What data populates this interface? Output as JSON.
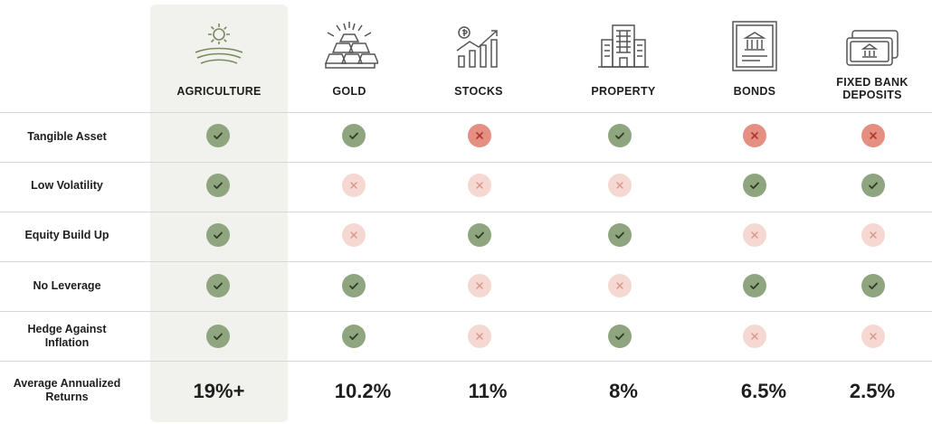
{
  "columns": [
    {
      "id": "agriculture",
      "label": "AGRICULTURE",
      "icon": "field-sun-icon",
      "return": "19%+"
    },
    {
      "id": "gold",
      "label": "GOLD",
      "icon": "gold-bars-icon",
      "return": "10.2%"
    },
    {
      "id": "stocks",
      "label": "STOCKS",
      "icon": "stock-chart-icon",
      "return": "11%"
    },
    {
      "id": "property",
      "label": "PROPERTY",
      "icon": "building-icon",
      "return": "8%"
    },
    {
      "id": "bonds",
      "label": "BONDS",
      "icon": "bond-certificate-icon",
      "return": "6.5%"
    },
    {
      "id": "deposits",
      "label_lines": [
        "FIXED BANK",
        "DEPOSITS"
      ],
      "icon": "bank-note-icon",
      "return": "2.5%"
    }
  ],
  "rows": [
    {
      "label_lines": [
        "Tangible Asset"
      ],
      "marks": [
        "yes",
        "yes",
        "no-strong",
        "yes",
        "no-strong",
        "no-strong"
      ]
    },
    {
      "label_lines": [
        "Low Volatility"
      ],
      "marks": [
        "yes",
        "no",
        "no",
        "no",
        "yes",
        "yes"
      ]
    },
    {
      "label_lines": [
        "Equity Build Up"
      ],
      "marks": [
        "yes",
        "no",
        "yes",
        "yes",
        "no",
        "no"
      ]
    },
    {
      "label_lines": [
        "No Leverage"
      ],
      "marks": [
        "yes",
        "yes",
        "no",
        "no",
        "yes",
        "yes"
      ]
    },
    {
      "label_lines": [
        "Hedge Against",
        "Inflation"
      ],
      "marks": [
        "yes",
        "yes",
        "no",
        "yes",
        "no",
        "no"
      ]
    }
  ],
  "returns_label_lines": [
    "Average Annualized",
    "Returns"
  ],
  "colors": {
    "yes": "#8fa580",
    "no_strong": "#e58f82",
    "no_light": "#f6d8d2",
    "highlight": "#f1f2ee"
  }
}
